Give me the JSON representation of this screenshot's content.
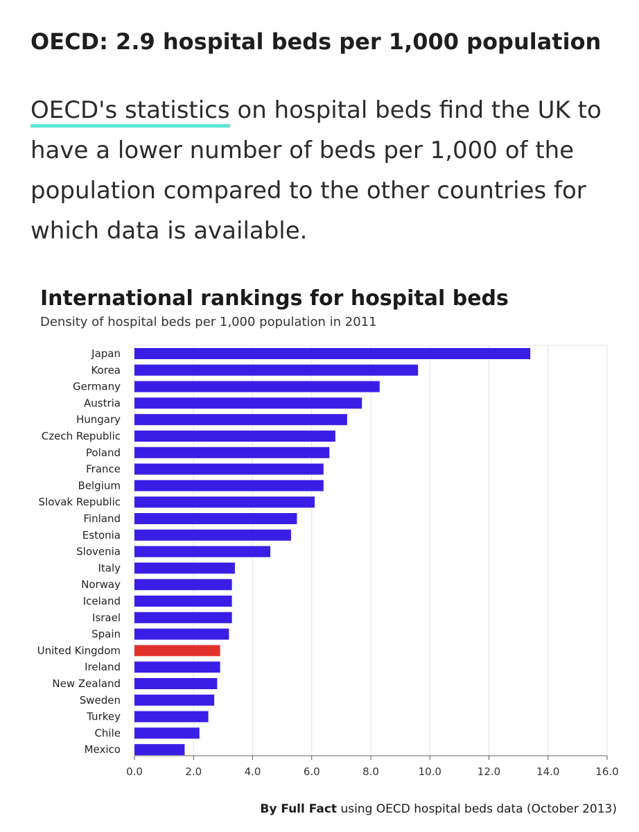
{
  "article": {
    "heading": "OECD: 2.9 hospital beds per 1,000 population",
    "paragraph_link": "OECD's statistics",
    "paragraph_rest": " on hospital beds find the UK to have a lower number of beds per 1,000 of the population compared to the other countries for which data is available."
  },
  "colors": {
    "bar": "#3a1ee6",
    "highlight": "#e2312a",
    "link_underline": "#5ee6d9",
    "grid": "#e4e4e4"
  },
  "chart_data": {
    "type": "bar",
    "orientation": "horizontal",
    "title": "International rankings for hospital beds",
    "subtitle": "Density of hospital beds per 1,000 population in 2011",
    "xlabel": "",
    "ylabel": "",
    "xlim": [
      0,
      16
    ],
    "xticks": [
      "0.0",
      "2.0",
      "4.0",
      "6.0",
      "8.0",
      "10.0",
      "12.0",
      "14.0",
      "16.0"
    ],
    "grid": true,
    "highlight_category": "United Kingdom",
    "categories": [
      "Japan",
      "Korea",
      "Germany",
      "Austria",
      "Hungary",
      "Czech Republic",
      "Poland",
      "France",
      "Belgium",
      "Slovak Republic",
      "Finland",
      "Estonia",
      "Slovenia",
      "Italy",
      "Norway",
      "Iceland",
      "Israel",
      "Spain",
      "United Kingdom",
      "Ireland",
      "New Zealand",
      "Sweden",
      "Turkey",
      "Chile",
      "Mexico"
    ],
    "values": [
      13.4,
      9.6,
      8.3,
      7.7,
      7.2,
      6.8,
      6.6,
      6.4,
      6.4,
      6.1,
      5.5,
      5.3,
      4.6,
      3.4,
      3.3,
      3.3,
      3.3,
      3.2,
      2.9,
      2.9,
      2.8,
      2.7,
      2.5,
      2.2,
      1.7
    ],
    "credit_bold": "By Full Fact",
    "credit_rest": " using OECD hospital beds data (October 2013)"
  }
}
